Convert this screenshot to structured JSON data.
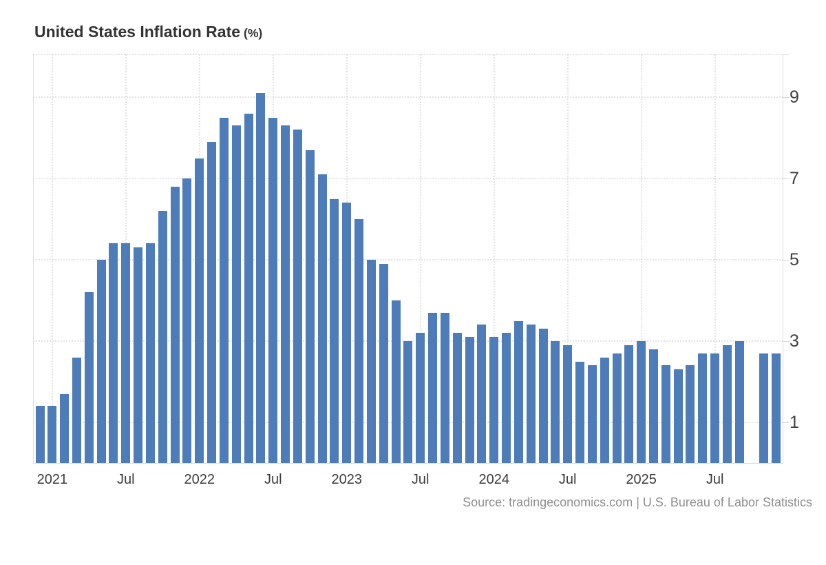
{
  "header": {
    "title": "United States Inflation Rate",
    "title_suffix": "(%)"
  },
  "footer": {
    "source": "Source: tradingeconomics.com | U.S. Bureau of Labor Statistics"
  },
  "chart_data": {
    "type": "bar",
    "title": "United States Inflation Rate (%)",
    "xlabel": "",
    "ylabel": "",
    "unit": "%",
    "bar_color": "#4d7cb8",
    "grid": true,
    "legend": false,
    "y_axis_side": "right",
    "ylim": [
      0,
      10.05
    ],
    "y_ticks": [
      1,
      3,
      5,
      7,
      9
    ],
    "categories": [
      "Dec 2020",
      "Jan 2021",
      "Feb 2021",
      "Mar 2021",
      "Apr 2021",
      "May 2021",
      "Jun 2021",
      "Jul 2021",
      "Aug 2021",
      "Sep 2021",
      "Oct 2021",
      "Nov 2021",
      "Dec 2021",
      "Jan 2022",
      "Feb 2022",
      "Mar 2022",
      "Apr 2022",
      "May 2022",
      "Jun 2022",
      "Jul 2022",
      "Aug 2022",
      "Sep 2022",
      "Oct 2022",
      "Nov 2022",
      "Dec 2022",
      "Jan 2023",
      "Feb 2023",
      "Mar 2023",
      "Apr 2023",
      "May 2023",
      "Jun 2023",
      "Jul 2023",
      "Aug 2023",
      "Sep 2023",
      "Oct 2023",
      "Nov 2023",
      "Dec 2023",
      "Jan 2024",
      "Feb 2024",
      "Mar 2024",
      "Apr 2024",
      "May 2024",
      "Jun 2024",
      "Jul 2024",
      "Aug 2024",
      "Sep 2024",
      "Oct 2024",
      "Nov 2024",
      "Dec 2024",
      "Jan 2025",
      "Feb 2025",
      "Mar 2025",
      "Apr 2025",
      "May 2025",
      "Jun 2025",
      "Jul 2025",
      "Aug 2025",
      "Sep 2025",
      "Oct 2025",
      "Nov 2025",
      "Dec 2025"
    ],
    "values": [
      1.4,
      1.4,
      1.7,
      2.6,
      4.2,
      5.0,
      5.4,
      5.4,
      5.3,
      5.4,
      6.2,
      6.8,
      7.0,
      7.5,
      7.9,
      8.5,
      8.3,
      8.6,
      9.1,
      8.5,
      8.3,
      8.2,
      7.7,
      7.1,
      6.5,
      6.4,
      6.0,
      5.0,
      4.9,
      4.0,
      3.0,
      3.2,
      3.7,
      3.7,
      3.2,
      3.1,
      3.4,
      3.1,
      3.2,
      3.5,
      3.4,
      3.3,
      3.0,
      2.9,
      2.5,
      2.4,
      2.6,
      2.7,
      2.9,
      3.0,
      2.8,
      2.4,
      2.3,
      2.4,
      2.7,
      2.7,
      2.9,
      3.0,
      null,
      2.7,
      2.7
    ],
    "missing_months": [
      "Oct 2025"
    ],
    "x_tick_labels": [
      {
        "index": 1,
        "label": "2021"
      },
      {
        "index": 7,
        "label": "Jul"
      },
      {
        "index": 13,
        "label": "2022"
      },
      {
        "index": 19,
        "label": "Jul"
      },
      {
        "index": 25,
        "label": "2023"
      },
      {
        "index": 31,
        "label": "Jul"
      },
      {
        "index": 37,
        "label": "2024"
      },
      {
        "index": 43,
        "label": "Jul"
      },
      {
        "index": 49,
        "label": "2025"
      },
      {
        "index": 55,
        "label": "Jul"
      }
    ],
    "source": "Source: tradingeconomics.com | U.S. Bureau of Labor Statistics"
  }
}
